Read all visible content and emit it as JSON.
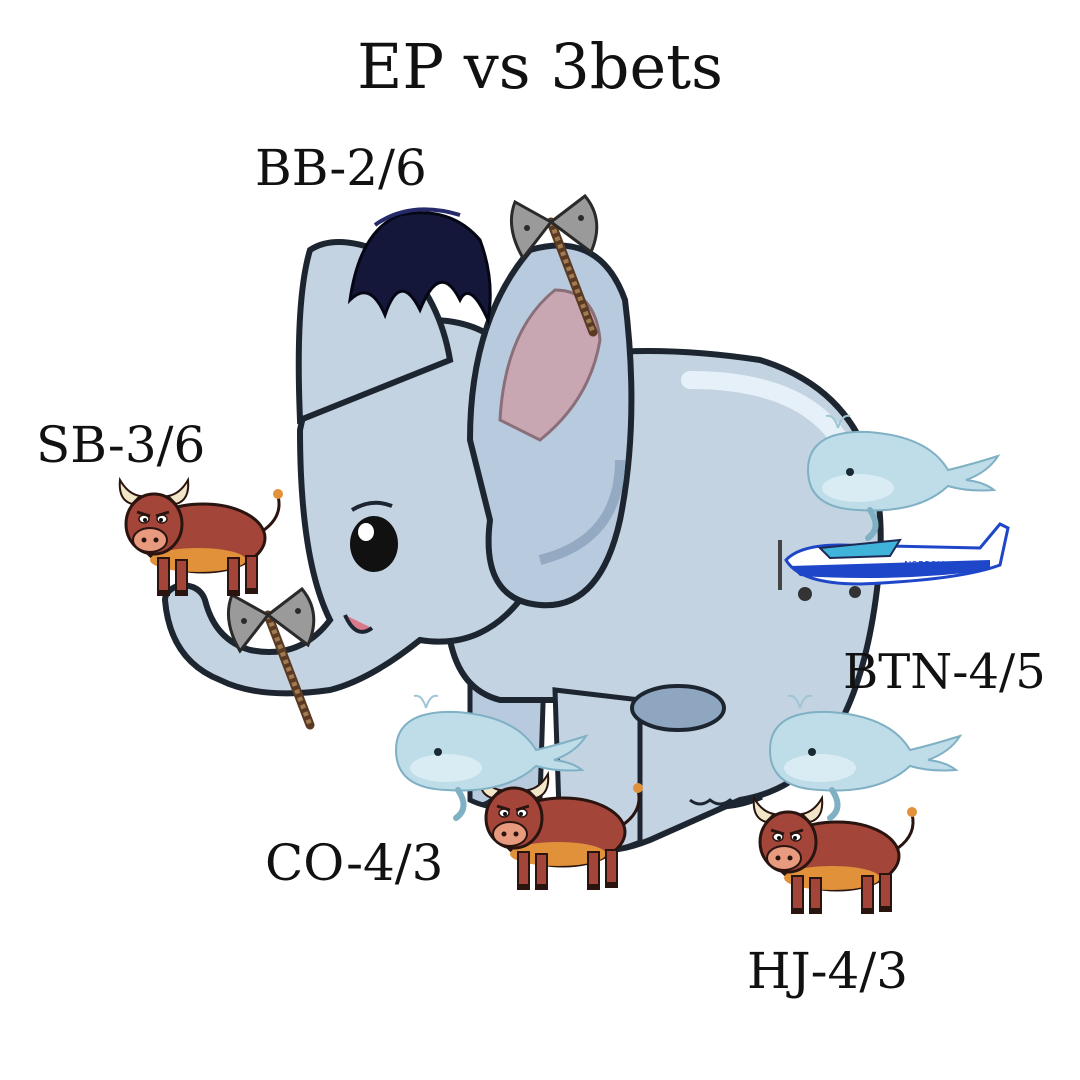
{
  "title": "EP vs 3bets",
  "positions": {
    "bb": {
      "label": "BB-2/6"
    },
    "sb": {
      "label": "SB-3/6"
    },
    "btn": {
      "label": "BTN-4/5"
    },
    "co": {
      "label": "CO-4/3"
    },
    "hj": {
      "label": "HJ-4/3"
    }
  },
  "colors": {
    "elephant": "#c3d3e2",
    "elephant_shade": "#93aac2",
    "bull": "#a4453a",
    "whale": "#bfdde8",
    "axe": "#9a9a9a",
    "plane": "#1e46c8"
  },
  "icons": [
    "elephant",
    "axe",
    "bull",
    "whale",
    "airplane",
    "hair-tuft"
  ]
}
